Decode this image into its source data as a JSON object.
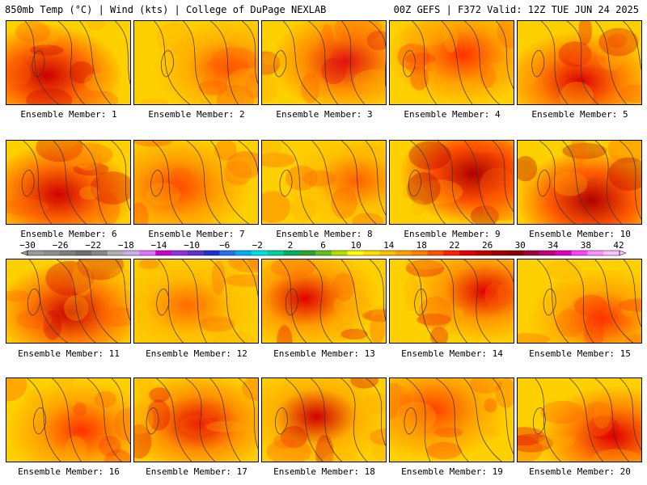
{
  "header": {
    "left": "850mb Temp (°C) | Wind (kts) | College of DuPage NEXLAB",
    "right": "00Z GEFS | F372 Valid: 12Z TUE JUN 24 2025"
  },
  "members": [
    {
      "label": "Ensemble Member: 1",
      "number": 1,
      "base": "#ff6a00",
      "hot": "#cc0000"
    },
    {
      "label": "Ensemble Member: 2",
      "number": 2,
      "base": "#ffb000",
      "hot": "#ff5000"
    },
    {
      "label": "Ensemble Member: 3",
      "number": 3,
      "base": "#ff9000",
      "hot": "#e01010"
    },
    {
      "label": "Ensemble Member: 4",
      "number": 4,
      "base": "#ffa000",
      "hot": "#ff3000"
    },
    {
      "label": "Ensemble Member: 5",
      "number": 5,
      "base": "#ff8000",
      "hot": "#e00000"
    },
    {
      "label": "Ensemble Member: 6",
      "number": 6,
      "base": "#ff7000",
      "hot": "#d00000"
    },
    {
      "label": "Ensemble Member: 7",
      "number": 7,
      "base": "#ffa000",
      "hot": "#ff4000"
    },
    {
      "label": "Ensemble Member: 8",
      "number": 8,
      "base": "#ffc000",
      "hot": "#ff6000"
    },
    {
      "label": "Ensemble Member: 9",
      "number": 9,
      "base": "#ff5000",
      "hot": "#b00000"
    },
    {
      "label": "Ensemble Member: 10",
      "number": 10,
      "base": "#ff5a00",
      "hot": "#b00000"
    },
    {
      "label": "Ensemble Member: 11",
      "number": 11,
      "base": "#ff7a00",
      "hot": "#c80000"
    },
    {
      "label": "Ensemble Member: 12",
      "number": 12,
      "base": "#ffbc00",
      "hot": "#ff6a00"
    },
    {
      "label": "Ensemble Member: 13",
      "number": 13,
      "base": "#ffa000",
      "hot": "#e00000"
    },
    {
      "label": "Ensemble Member: 14",
      "number": 14,
      "base": "#ff9800",
      "hot": "#e00000"
    },
    {
      "label": "Ensemble Member: 15",
      "number": 15,
      "base": "#ffa800",
      "hot": "#ff3000"
    },
    {
      "label": "Ensemble Member: 16",
      "number": 16,
      "base": "#ffa000",
      "hot": "#ff3000"
    },
    {
      "label": "Ensemble Member: 17",
      "number": 17,
      "base": "#ff9000",
      "hot": "#e00000"
    },
    {
      "label": "Ensemble Member: 18",
      "number": 18,
      "base": "#ffb000",
      "hot": "#d00000"
    },
    {
      "label": "Ensemble Member: 19",
      "number": 19,
      "base": "#ffa000",
      "hot": "#ff4000"
    },
    {
      "label": "Ensemble Member: 20",
      "number": 20,
      "base": "#ff8000",
      "hot": "#e00000"
    }
  ],
  "legend": {
    "labels": [
      "−30",
      "−26",
      "−22",
      "−18",
      "−14",
      "−10",
      "−6",
      "−2",
      "2",
      "6",
      "10",
      "14",
      "18",
      "22",
      "26",
      "30",
      "34",
      "38",
      "42"
    ],
    "colors": [
      "#9a9a9a",
      "#8e8e8e",
      "#7e7e7e",
      "#6e6e6e",
      "#888888",
      "#b0b0b0",
      "#cbb0e8",
      "#e070ff",
      "#cc00cc",
      "#9030e0",
      "#6030d0",
      "#2030d0",
      "#2070f0",
      "#00b0f0",
      "#00e0e0",
      "#00d0a0",
      "#00b060",
      "#30a030",
      "#60c020",
      "#b0e000",
      "#ffff00",
      "#ffe000",
      "#ffc000",
      "#ffa000",
      "#ff8000",
      "#ff5000",
      "#ff2000",
      "#e00000",
      "#c00000",
      "#a00000",
      "#880000",
      "#a00040",
      "#c00080",
      "#e000c0",
      "#ff40ff",
      "#ff90ff",
      "#ffc0ff"
    ]
  }
}
